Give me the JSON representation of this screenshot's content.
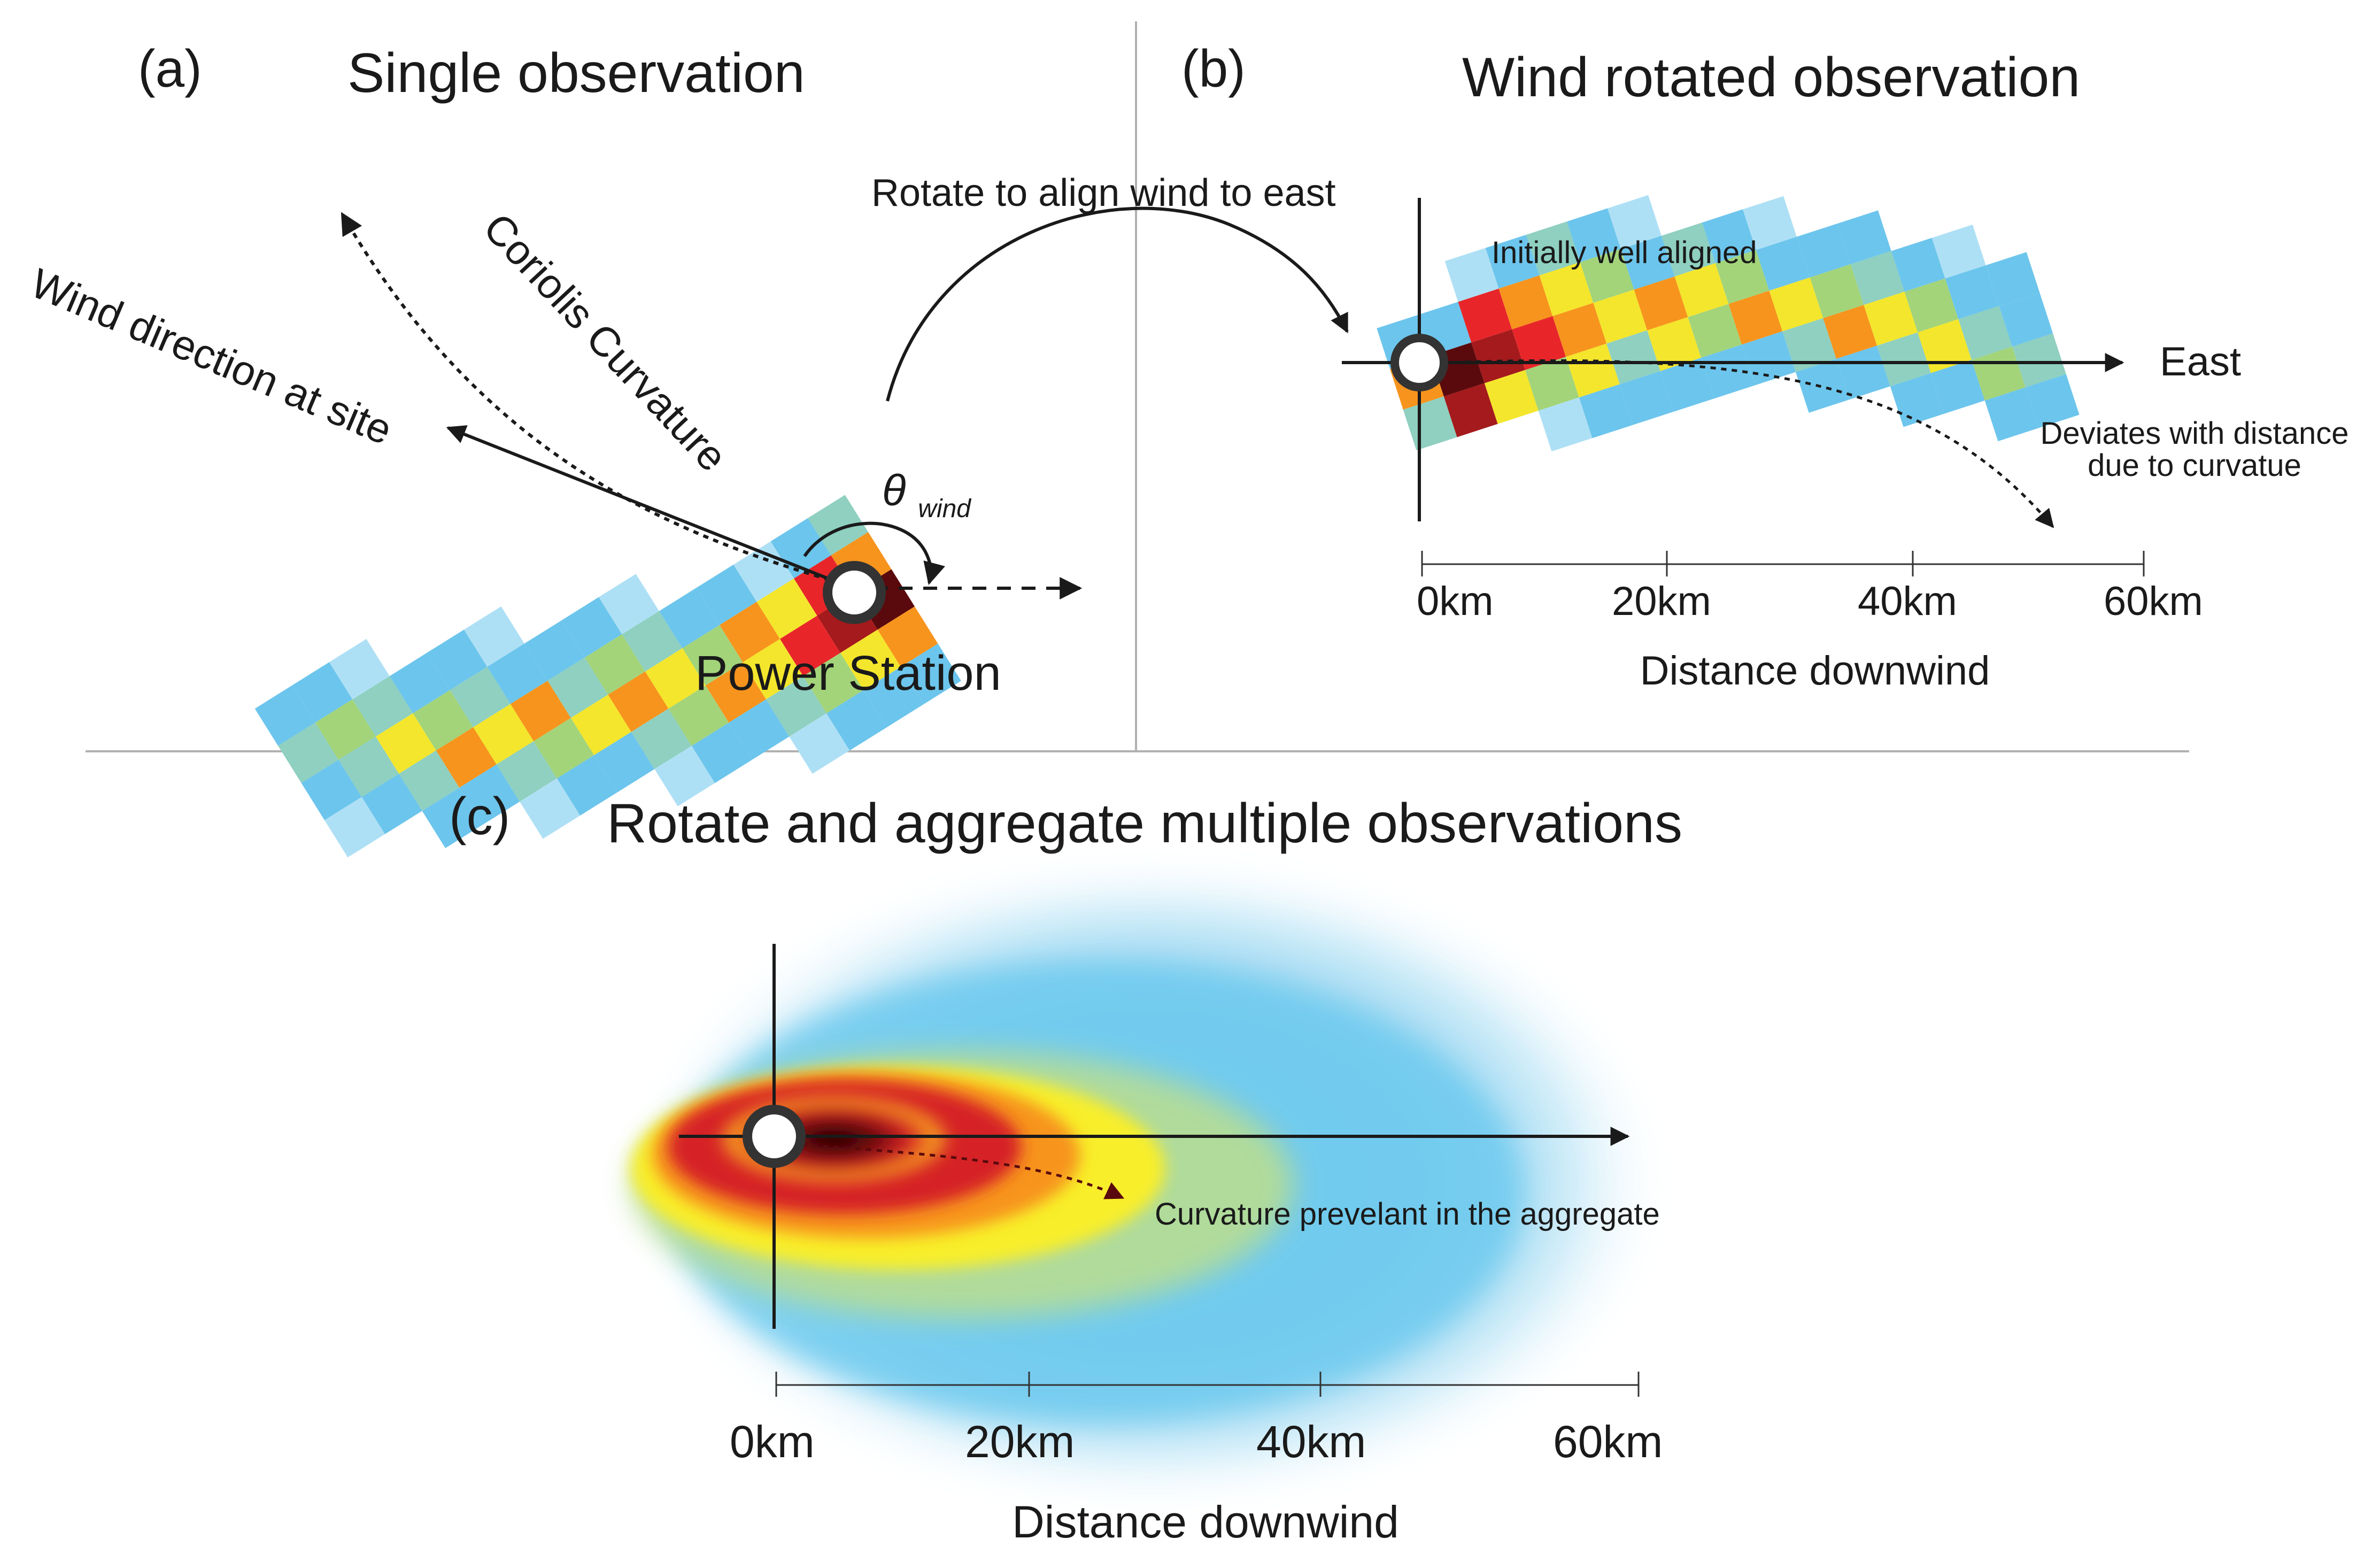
{
  "panel_a": {
    "label": "(a)",
    "title": "Single observation",
    "wind_label": "Wind direction at site",
    "coriolis_label": "Coriolis Curvature",
    "theta_symbol": "θ",
    "theta_subscript": "wind",
    "station_label": "Power Station"
  },
  "transition": {
    "label": "Rotate to align wind to east"
  },
  "panel_b": {
    "label": "(b)",
    "title": "Wind rotated observation",
    "aligned_label": "Initially well aligned",
    "east_label": "East",
    "deviation_line1": "Deviates with distance",
    "deviation_line2": "due to curvatue",
    "axis_ticks": [
      "0km",
      "20km",
      "40km",
      "60km"
    ],
    "axis_title": "Distance downwind"
  },
  "panel_c": {
    "label": "(c)",
    "title": "Rotate and aggregate multiple observations",
    "curvature_label": "Curvature prevelant in the aggregate",
    "axis_ticks": [
      "0km",
      "20km",
      "40km",
      "60km"
    ],
    "axis_title": "Distance downwind"
  },
  "colors": {
    "plume_scale": [
      "#aee0f5",
      "#6cc5ec",
      "#8fd0c0",
      "#a3d47a",
      "#f4e62c",
      "#f7941d",
      "#e8262a",
      "#a51a1c",
      "#5a0a0c"
    ],
    "divider": "#b0b0b0",
    "ink": "#1a1a1a"
  }
}
